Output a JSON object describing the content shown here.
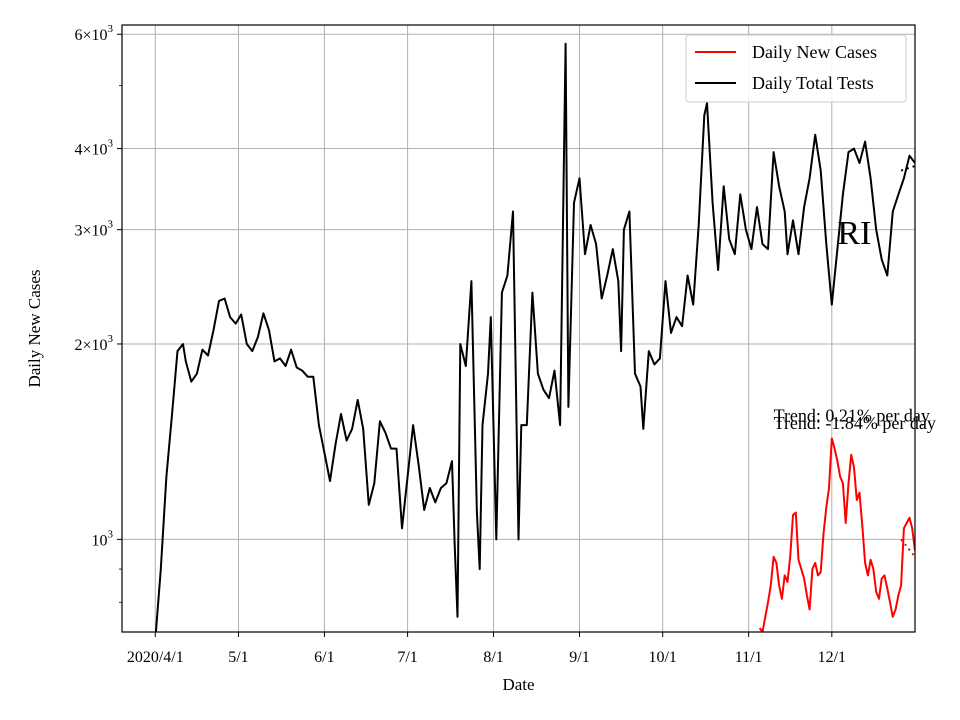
{
  "chart_data": {
    "type": "line",
    "title": "",
    "xlabel": "Date",
    "ylabel": "Daily New Cases",
    "yscale": "log",
    "ylim": [
      720,
      6200
    ],
    "xlim": [
      "2020-03-20",
      "2020-12-31"
    ],
    "grid": true,
    "legend_position": "upper-right",
    "x_ticks": [
      {
        "date": "2020-04-01",
        "label": "2020/4/1"
      },
      {
        "date": "2020-05-01",
        "label": "5/1"
      },
      {
        "date": "2020-06-01",
        "label": "6/1"
      },
      {
        "date": "2020-07-01",
        "label": "7/1"
      },
      {
        "date": "2020-08-01",
        "label": "8/1"
      },
      {
        "date": "2020-09-01",
        "label": "9/1"
      },
      {
        "date": "2020-10-01",
        "label": "10/1"
      },
      {
        "date": "2020-11-01",
        "label": "11/1"
      },
      {
        "date": "2020-12-01",
        "label": "12/1"
      }
    ],
    "y_ticks": [
      {
        "value": 1000,
        "base": "10",
        "exp": "3"
      },
      {
        "value": 2000,
        "base": "2×10",
        "exp": "3"
      },
      {
        "value": 3000,
        "base": "3×10",
        "exp": "3"
      },
      {
        "value": 4000,
        "base": "4×10",
        "exp": "3"
      },
      {
        "value": 6000,
        "base": "6×10",
        "exp": "3"
      }
    ],
    "y_minor_ticks": [
      800,
      900,
      5000
    ],
    "series": [
      {
        "name": "Daily New Cases",
        "color": "#ff0000",
        "points": [
          [
            "2020-11-05",
            730
          ],
          [
            "2020-11-06",
            720
          ],
          [
            "2020-11-07",
            760
          ],
          [
            "2020-11-08",
            800
          ],
          [
            "2020-11-09",
            850
          ],
          [
            "2020-11-10",
            940
          ],
          [
            "2020-11-11",
            920
          ],
          [
            "2020-11-12",
            850
          ],
          [
            "2020-11-13",
            810
          ],
          [
            "2020-11-14",
            880
          ],
          [
            "2020-11-15",
            860
          ],
          [
            "2020-11-16",
            940
          ],
          [
            "2020-11-17",
            1090
          ],
          [
            "2020-11-18",
            1100
          ],
          [
            "2020-11-19",
            930
          ],
          [
            "2020-11-20",
            900
          ],
          [
            "2020-11-21",
            870
          ],
          [
            "2020-11-22",
            820
          ],
          [
            "2020-11-23",
            780
          ],
          [
            "2020-11-24",
            900
          ],
          [
            "2020-11-25",
            920
          ],
          [
            "2020-11-26",
            880
          ],
          [
            "2020-11-27",
            890
          ],
          [
            "2020-11-28",
            1020
          ],
          [
            "2020-11-29",
            1120
          ],
          [
            "2020-11-30",
            1200
          ],
          [
            "2020-12-01",
            1430
          ],
          [
            "2020-12-02",
            1380
          ],
          [
            "2020-12-03",
            1320
          ],
          [
            "2020-12-04",
            1250
          ],
          [
            "2020-12-05",
            1220
          ],
          [
            "2020-12-06",
            1060
          ],
          [
            "2020-12-07",
            1220
          ],
          [
            "2020-12-08",
            1350
          ],
          [
            "2020-12-09",
            1290
          ],
          [
            "2020-12-10",
            1150
          ],
          [
            "2020-12-11",
            1180
          ],
          [
            "2020-12-12",
            1050
          ],
          [
            "2020-12-13",
            920
          ],
          [
            "2020-12-14",
            880
          ],
          [
            "2020-12-15",
            930
          ],
          [
            "2020-12-16",
            900
          ],
          [
            "2020-12-17",
            830
          ],
          [
            "2020-12-18",
            810
          ],
          [
            "2020-12-19",
            870
          ],
          [
            "2020-12-20",
            880
          ],
          [
            "2020-12-21",
            840
          ],
          [
            "2020-12-22",
            800
          ],
          [
            "2020-12-23",
            760
          ],
          [
            "2020-12-24",
            780
          ],
          [
            "2020-12-25",
            820
          ],
          [
            "2020-12-26",
            850
          ],
          [
            "2020-12-27",
            1040
          ],
          [
            "2020-12-28",
            1060
          ],
          [
            "2020-12-29",
            1080
          ],
          [
            "2020-12-30",
            1040
          ],
          [
            "2020-12-31",
            960
          ]
        ]
      },
      {
        "name": "Daily Total Tests",
        "color": "#000000",
        "points": [
          [
            "2020-04-01",
            700
          ],
          [
            "2020-04-03",
            900
          ],
          [
            "2020-04-05",
            1250
          ],
          [
            "2020-04-07",
            1550
          ],
          [
            "2020-04-09",
            1950
          ],
          [
            "2020-04-11",
            2000
          ],
          [
            "2020-04-12",
            1880
          ],
          [
            "2020-04-14",
            1750
          ],
          [
            "2020-04-16",
            1800
          ],
          [
            "2020-04-18",
            1960
          ],
          [
            "2020-04-20",
            1920
          ],
          [
            "2020-04-22",
            2100
          ],
          [
            "2020-04-24",
            2330
          ],
          [
            "2020-04-26",
            2350
          ],
          [
            "2020-04-28",
            2200
          ],
          [
            "2020-04-30",
            2150
          ],
          [
            "2020-05-02",
            2220
          ],
          [
            "2020-05-04",
            2000
          ],
          [
            "2020-05-06",
            1950
          ],
          [
            "2020-05-08",
            2050
          ],
          [
            "2020-05-10",
            2230
          ],
          [
            "2020-05-12",
            2100
          ],
          [
            "2020-05-14",
            1880
          ],
          [
            "2020-05-16",
            1900
          ],
          [
            "2020-05-18",
            1850
          ],
          [
            "2020-05-20",
            1960
          ],
          [
            "2020-05-22",
            1840
          ],
          [
            "2020-05-24",
            1820
          ],
          [
            "2020-05-26",
            1780
          ],
          [
            "2020-05-28",
            1780
          ],
          [
            "2020-05-30",
            1500
          ],
          [
            "2020-06-01",
            1360
          ],
          [
            "2020-06-03",
            1230
          ],
          [
            "2020-06-05",
            1400
          ],
          [
            "2020-06-07",
            1560
          ],
          [
            "2020-06-09",
            1420
          ],
          [
            "2020-06-11",
            1480
          ],
          [
            "2020-06-13",
            1640
          ],
          [
            "2020-06-15",
            1480
          ],
          [
            "2020-06-17",
            1130
          ],
          [
            "2020-06-19",
            1220
          ],
          [
            "2020-06-21",
            1520
          ],
          [
            "2020-06-23",
            1460
          ],
          [
            "2020-06-25",
            1380
          ],
          [
            "2020-06-27",
            1380
          ],
          [
            "2020-06-29",
            1040
          ],
          [
            "2020-07-01",
            1250
          ],
          [
            "2020-07-03",
            1500
          ],
          [
            "2020-07-05",
            1300
          ],
          [
            "2020-07-07",
            1110
          ],
          [
            "2020-07-09",
            1200
          ],
          [
            "2020-07-11",
            1140
          ],
          [
            "2020-07-13",
            1200
          ],
          [
            "2020-07-15",
            1220
          ],
          [
            "2020-07-17",
            1320
          ],
          [
            "2020-07-18",
            980
          ],
          [
            "2020-07-19",
            760
          ],
          [
            "2020-07-20",
            2000
          ],
          [
            "2020-07-22",
            1850
          ],
          [
            "2020-07-24",
            2500
          ],
          [
            "2020-07-26",
            1100
          ],
          [
            "2020-07-27",
            900
          ],
          [
            "2020-07-28",
            1500
          ],
          [
            "2020-07-30",
            1800
          ],
          [
            "2020-07-31",
            2200
          ],
          [
            "2020-08-02",
            1000
          ],
          [
            "2020-08-04",
            2400
          ],
          [
            "2020-08-06",
            2550
          ],
          [
            "2020-08-08",
            3200
          ],
          [
            "2020-08-10",
            1000
          ],
          [
            "2020-08-11",
            1500
          ],
          [
            "2020-08-13",
            1500
          ],
          [
            "2020-08-15",
            2400
          ],
          [
            "2020-08-17",
            1800
          ],
          [
            "2020-08-19",
            1700
          ],
          [
            "2020-08-21",
            1650
          ],
          [
            "2020-08-23",
            1820
          ],
          [
            "2020-08-25",
            1500
          ],
          [
            "2020-08-27",
            5800
          ],
          [
            "2020-08-28",
            1600
          ],
          [
            "2020-08-30",
            3300
          ],
          [
            "2020-09-01",
            3600
          ],
          [
            "2020-09-03",
            2750
          ],
          [
            "2020-09-05",
            3050
          ],
          [
            "2020-09-07",
            2850
          ],
          [
            "2020-09-09",
            2350
          ],
          [
            "2020-09-11",
            2550
          ],
          [
            "2020-09-13",
            2800
          ],
          [
            "2020-09-15",
            2500
          ],
          [
            "2020-09-16",
            1950
          ],
          [
            "2020-09-17",
            3000
          ],
          [
            "2020-09-19",
            3200
          ],
          [
            "2020-09-21",
            1800
          ],
          [
            "2020-09-23",
            1720
          ],
          [
            "2020-09-24",
            1480
          ],
          [
            "2020-09-26",
            1950
          ],
          [
            "2020-09-28",
            1860
          ],
          [
            "2020-09-30",
            1900
          ],
          [
            "2020-10-02",
            2500
          ],
          [
            "2020-10-04",
            2080
          ],
          [
            "2020-10-06",
            2200
          ],
          [
            "2020-10-08",
            2130
          ],
          [
            "2020-10-10",
            2550
          ],
          [
            "2020-10-12",
            2300
          ],
          [
            "2020-10-14",
            3050
          ],
          [
            "2020-10-16",
            4500
          ],
          [
            "2020-10-17",
            4700
          ],
          [
            "2020-10-19",
            3300
          ],
          [
            "2020-10-21",
            2600
          ],
          [
            "2020-10-23",
            3500
          ],
          [
            "2020-10-25",
            2900
          ],
          [
            "2020-10-27",
            2750
          ],
          [
            "2020-10-29",
            3400
          ],
          [
            "2020-10-31",
            3000
          ],
          [
            "2020-11-02",
            2800
          ],
          [
            "2020-11-04",
            3250
          ],
          [
            "2020-11-06",
            2850
          ],
          [
            "2020-11-08",
            2800
          ],
          [
            "2020-11-10",
            3950
          ],
          [
            "2020-11-12",
            3500
          ],
          [
            "2020-11-14",
            3200
          ],
          [
            "2020-11-15",
            2750
          ],
          [
            "2020-11-17",
            3100
          ],
          [
            "2020-11-19",
            2750
          ],
          [
            "2020-11-21",
            3250
          ],
          [
            "2020-11-23",
            3600
          ],
          [
            "2020-11-25",
            4200
          ],
          [
            "2020-11-27",
            3700
          ],
          [
            "2020-11-29",
            2850
          ],
          [
            "2020-12-01",
            2300
          ],
          [
            "2020-12-03",
            2800
          ],
          [
            "2020-12-05",
            3400
          ],
          [
            "2020-12-07",
            3950
          ],
          [
            "2020-12-09",
            4000
          ],
          [
            "2020-12-11",
            3800
          ],
          [
            "2020-12-13",
            4100
          ],
          [
            "2020-12-15",
            3600
          ],
          [
            "2020-12-17",
            3000
          ],
          [
            "2020-12-19",
            2700
          ],
          [
            "2020-12-21",
            2550
          ],
          [
            "2020-12-23",
            3200
          ],
          [
            "2020-12-25",
            3400
          ],
          [
            "2020-12-27",
            3600
          ],
          [
            "2020-12-29",
            3900
          ],
          [
            "2020-12-31",
            3800
          ]
        ]
      }
    ],
    "trend_lines": [
      {
        "color": "#ff0000",
        "style": "dotted",
        "from": [
          "2020-12-26",
          1000
        ],
        "to": [
          "2020-12-31",
          940
        ]
      },
      {
        "color": "#000000",
        "style": "dotted",
        "from": [
          "2020-12-26",
          3700
        ],
        "to": [
          "2020-12-31",
          3760
        ]
      }
    ],
    "annotations": [
      {
        "text": "Trend: 0.21% per day",
        "date": "2020-11-10",
        "value": 1520
      },
      {
        "text": "Trend: -1.84% per day",
        "date": "2020-11-10",
        "value": 1480
      },
      {
        "text": "RI",
        "date": "2020-12-03",
        "value": 2850
      }
    ]
  }
}
